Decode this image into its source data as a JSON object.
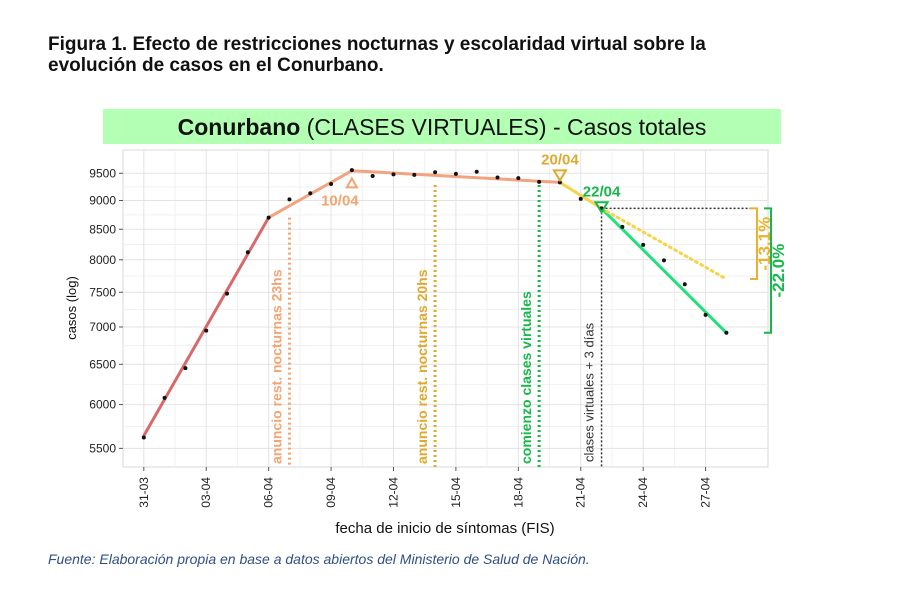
{
  "figure": {
    "title_line1": "Figura 1. Efecto de restricciones nocturnas y escolaridad virtual sobre la",
    "title_line2": "evolución de casos en el Conurbano.",
    "source": "Fuente: Elaboración propia en base a datos abiertos del Ministerio de Salud de Nación."
  },
  "chart_data": {
    "type": "line",
    "title_bold": "Conurbano",
    "title_rest": " (CLASES VIRTUALES) - Casos totales",
    "title_bg": "#b3ffb3",
    "xlabel": "fecha de inicio de síntomas (FIS)",
    "ylabel": "casos (log)",
    "y_scale": "log",
    "grid": true,
    "x_range": [
      "30-03",
      "30-04"
    ],
    "y_range": [
      5300,
      9950
    ],
    "x_ticks": [
      "31-03",
      "03-04",
      "06-04",
      "09-04",
      "12-04",
      "15-04",
      "18-04",
      "21-04",
      "24-04",
      "27-04"
    ],
    "y_ticks": [
      5500,
      6000,
      6500,
      7000,
      7500,
      8000,
      8500,
      9000,
      9500
    ],
    "points": {
      "x": [
        "31-03",
        "01-04",
        "02-04",
        "03-04",
        "04-04",
        "05-04",
        "06-04",
        "07-04",
        "08-04",
        "09-04",
        "10-04",
        "11-04",
        "12-04",
        "13-04",
        "14-04",
        "15-04",
        "16-04",
        "17-04",
        "18-04",
        "19-04",
        "20-04",
        "21-04",
        "22-04",
        "23-04",
        "24-04",
        "25-04",
        "26-04",
        "27-04",
        "28-04"
      ],
      "y": [
        5620,
        6080,
        6450,
        6950,
        7480,
        8120,
        8700,
        9020,
        9130,
        9300,
        9560,
        9450,
        9480,
        9470,
        9520,
        9490,
        9530,
        9420,
        9410,
        9340,
        9330,
        9030,
        8860,
        8540,
        8240,
        7990,
        7620,
        7170,
        6920
      ]
    },
    "series": [
      {
        "role": "ascenso",
        "color": "#d9686b",
        "x": [
          "31-03",
          "06-04"
        ],
        "y": [
          5640,
          8700
        ]
      },
      {
        "role": "tendencia",
        "color": "#f3a37f",
        "x": [
          "06-04",
          "10-04",
          "20-04"
        ],
        "y": [
          8700,
          9550,
          9330
        ]
      },
      {
        "role": "tramo",
        "color": "#f5d44a",
        "x": [
          "20-04",
          "22-04"
        ],
        "y": [
          9330,
          8860
        ]
      },
      {
        "role": "caída",
        "color": "#22e07a",
        "x": [
          "22-04",
          "28-04"
        ],
        "y": [
          8860,
          6920
        ]
      },
      {
        "role": "proyección",
        "color": "#f5d44a",
        "dashed": true,
        "x": [
          "22-04",
          "28-04"
        ],
        "y": [
          8860,
          7700
        ]
      }
    ],
    "events": [
      {
        "x": "07-04",
        "label": "anuncio rest. nocturnas 23hs",
        "color": "#f4a470"
      },
      {
        "x": "14-04",
        "label": "anuncio rest. nocturnas 20hs",
        "color": "#e0a92e"
      },
      {
        "x": "19-04",
        "label": "comienzo clases virtuales",
        "color": "#16b84a"
      },
      {
        "x": "22-04",
        "label": "clases virtuales + 3 días",
        "color": "#333333"
      }
    ],
    "markers": [
      {
        "x": "10-04",
        "y": 9330,
        "label": "10/04",
        "color": "#f4a470"
      },
      {
        "x": "20-04",
        "y": 9460,
        "label": "20/04",
        "color": "#e0a92e"
      },
      {
        "x": "22-04",
        "y": 8880,
        "label": "22/04",
        "color": "#16b84a"
      }
    ],
    "reference_y": 8860,
    "annotations": [
      {
        "label": "-13.1%",
        "color": "#e9b22e",
        "from": 8860,
        "to": 7700
      },
      {
        "label": "-22.0%",
        "color": "#16b84a",
        "from": 8860,
        "to": 6920
      }
    ]
  }
}
